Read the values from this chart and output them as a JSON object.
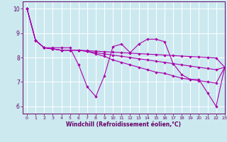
{
  "xlabel": "Windchill (Refroidissement éolien,°C)",
  "xlim": [
    -0.5,
    23
  ],
  "ylim": [
    5.7,
    10.3
  ],
  "yticks": [
    6,
    7,
    8,
    9,
    10
  ],
  "xticks": [
    0,
    1,
    2,
    3,
    4,
    5,
    6,
    7,
    8,
    9,
    10,
    11,
    12,
    13,
    14,
    15,
    16,
    17,
    18,
    19,
    20,
    21,
    22,
    23
  ],
  "bg_color": "#cce9f0",
  "line_color": "#aa00aa",
  "grid_color": "#ffffff",
  "lines": [
    [
      10.0,
      8.7,
      8.4,
      8.4,
      8.4,
      8.4,
      7.7,
      6.8,
      6.4,
      7.25,
      8.45,
      8.55,
      8.2,
      8.55,
      8.75,
      8.75,
      8.65,
      7.75,
      7.3,
      7.1,
      7.1,
      6.55,
      6.0,
      7.6
    ],
    [
      10.0,
      8.7,
      8.4,
      8.35,
      8.3,
      8.3,
      8.3,
      8.25,
      8.15,
      8.05,
      7.9,
      7.8,
      7.7,
      7.6,
      7.5,
      7.4,
      7.35,
      7.25,
      7.15,
      7.1,
      7.05,
      7.0,
      6.95,
      7.6
    ],
    [
      10.0,
      8.7,
      8.4,
      8.35,
      8.3,
      8.3,
      8.3,
      8.25,
      8.2,
      8.15,
      8.1,
      8.05,
      8.0,
      7.95,
      7.9,
      7.85,
      7.8,
      7.75,
      7.7,
      7.65,
      7.6,
      7.55,
      7.5,
      7.6
    ],
    [
      10.0,
      8.7,
      8.4,
      8.35,
      8.3,
      8.3,
      8.3,
      8.28,
      8.26,
      8.24,
      8.22,
      8.2,
      8.18,
      8.16,
      8.14,
      8.12,
      8.1,
      8.08,
      8.06,
      8.04,
      8.02,
      8.0,
      7.98,
      7.6
    ]
  ]
}
